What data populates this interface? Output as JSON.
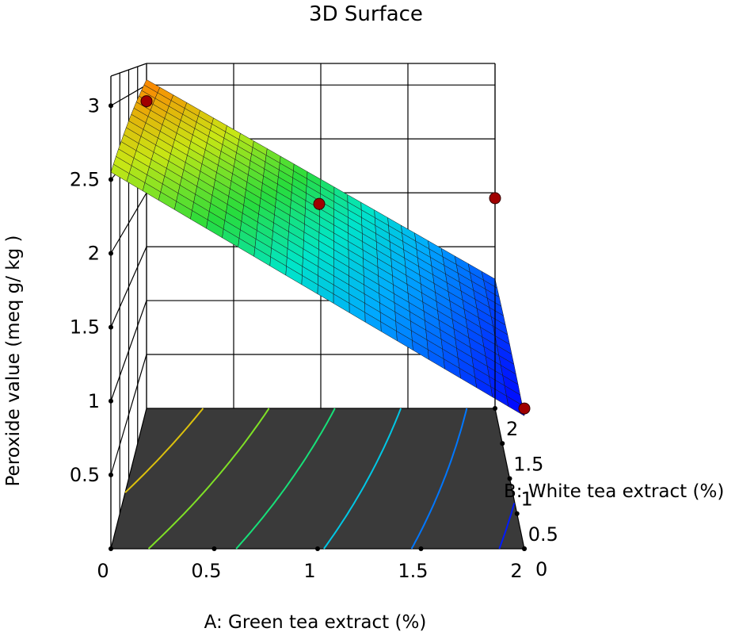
{
  "chart_data": {
    "type": "surface",
    "title": "3D Surface",
    "xlabel": "A: Green tea extract  (%)",
    "ylabel": "B: White tea extract  (%)",
    "zlabel": "Peroxide value (meq g/ kg )",
    "x_ticks": [
      "0",
      "0.5",
      "1",
      "1.5",
      "2"
    ],
    "y_ticks": [
      "0",
      "0.5",
      "1",
      "1.5",
      "2"
    ],
    "z_ticks": [
      "0.5",
      "1",
      "1.5",
      "2",
      "2.5",
      "3"
    ],
    "xlim": [
      0,
      2
    ],
    "ylim": [
      0,
      2
    ],
    "zlim": [
      0,
      3.2
    ],
    "surface_corners": [
      {
        "A": 0,
        "B": 0,
        "z": 2.55
      },
      {
        "A": 0,
        "B": 2,
        "z": 3.05
      },
      {
        "A": 2,
        "B": 2,
        "z": 1.2
      },
      {
        "A": 2,
        "B": 0,
        "z": 0.9
      }
    ],
    "design_points": [
      {
        "A": 0,
        "B": 2,
        "z": 2.85
      },
      {
        "A": 1,
        "B": 1,
        "z": 2.15
      },
      {
        "A": 2,
        "B": 2,
        "z": 1.95
      },
      {
        "A": 2,
        "B": 0,
        "z": 0.95
      }
    ],
    "contour_levels": [
      1.0,
      1.35,
      1.7,
      2.05,
      2.4,
      2.75
    ],
    "colors": {
      "low": "#0000ff",
      "high": "#ff8000",
      "floor": "#3a3a3a",
      "point": "#a00000"
    }
  }
}
